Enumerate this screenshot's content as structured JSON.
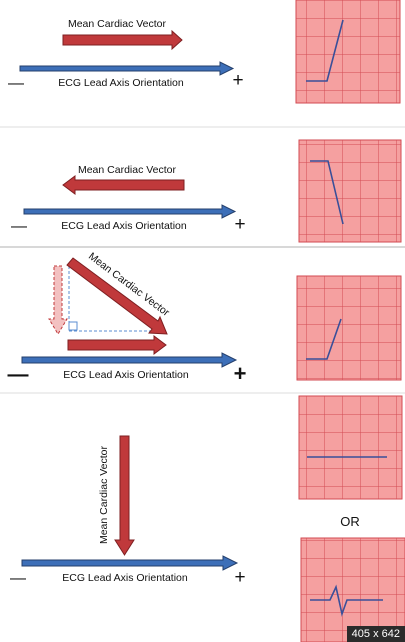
{
  "panels": [
    {
      "vector_label": "Mean Cardiac Vector",
      "axis_label": "ECG Lead Axis Orientation",
      "minus": "—",
      "plus": "+"
    },
    {
      "vector_label": "Mean Cardiac Vector",
      "axis_label": "ECG Lead Axis Orientation",
      "minus": "—",
      "plus": "+"
    },
    {
      "vector_label": "Mean Cardiac Vector",
      "axis_label": "ECG Lead Axis Orientation",
      "minus": "—",
      "plus": "+"
    },
    {
      "vector_label": "Mean Cardiac Vector",
      "axis_label": "ECG Lead Axis Orientation",
      "minus": "—",
      "plus": "+"
    }
  ],
  "or_label": "OR",
  "size_badge": "405 x 642",
  "colors": {
    "red_arrow": "#c0393b",
    "blue_arrow": "#3d6fb8",
    "ecg_paper": "#f5a0a0",
    "ecg_grid": "#d24a52",
    "ecg_trace": "#3a4f99",
    "divider": "#dddddd"
  }
}
